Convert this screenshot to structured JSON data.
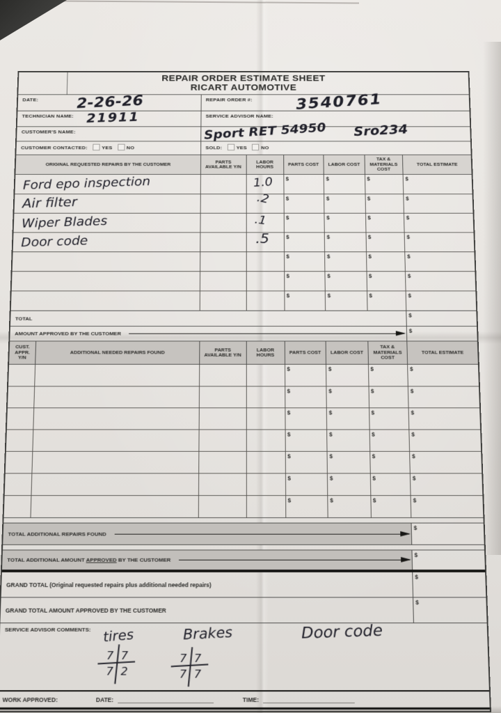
{
  "currency_symbol": "$",
  "header": {
    "title_line1": "REPAIR ORDER ESTIMATE SHEET",
    "title_line2": "RICART AUTOMOTIVE",
    "date_label": "DATE:",
    "date_value": "2-26-26",
    "repair_order_label": "REPAIR ORDER #:",
    "repair_order_value": "3540761",
    "technician_label": "TECHNICIAN NAME:",
    "technician_value": "21911",
    "service_advisor_label": "SERVICE ADVISOR NAME:",
    "customer_name_label": "CUSTOMER'S NAME:",
    "customer_note_left": "Sport RET 54950",
    "customer_note_right": "Sro234",
    "customer_contacted_label": "CUSTOMER CONTACTED:",
    "sold_label": "SOLD:",
    "yes_label": "YES",
    "no_label": "NO"
  },
  "original_table": {
    "columns": {
      "repairs": "ORIGINAL REQUESTED REPAIRS BY THE CUSTOMER",
      "parts_available": "PARTS AVAILABLE Y/N",
      "labor_hours": "LABOR HOURS",
      "parts_cost": "PARTS COST",
      "labor_cost": "LABOR COST",
      "tax_materials": "TAX & MATERIALS COST",
      "total_estimate": "TOTAL ESTIMATE"
    },
    "rows": [
      {
        "repair": "Ford epo inspection",
        "labor_hours": "1.0"
      },
      {
        "repair": "Air filter",
        "labor_hours": ".2"
      },
      {
        "repair": "Wiper Blades",
        "labor_hours": ".1"
      },
      {
        "repair": "Door code",
        "labor_hours": ".5"
      },
      {
        "repair": "",
        "labor_hours": ""
      },
      {
        "repair": "",
        "labor_hours": ""
      },
      {
        "repair": "",
        "labor_hours": ""
      }
    ],
    "total_label": "TOTAL",
    "amount_approved_label": "AMOUNT APPROVED BY THE CUSTOMER"
  },
  "additional_table": {
    "columns": {
      "cust_appr": "CUST. APPR. Y/N",
      "repairs_found": "ADDITIONAL NEEDED REPAIRS FOUND",
      "parts_available": "PARTS AVAILABLE Y/N",
      "labor_hours": "LABOR HOURS",
      "parts_cost": "PARTS COST",
      "labor_cost": "LABOR COST",
      "tax_materials": "TAX & MATERIALS COST",
      "total_estimate": "TOTAL ESTIMATE"
    },
    "empty_row_count": 7,
    "total_found_label": "TOTAL ADDITIONAL REPAIRS FOUND",
    "total_approved_prefix": "TOTAL ADDITIONAL AMOUNT ",
    "total_approved_underlined": "APPROVED",
    "total_approved_suffix": " BY THE CUSTOMER"
  },
  "grand_totals": {
    "grand_total_label": "GRAND TOTAL (Original requested repairs plus additional needed repairs)",
    "grand_total_approved_label": "GRAND TOTAL AMOUNT APPROVED BY THE CUSTOMER"
  },
  "comments": {
    "label": "SERVICE ADVISOR COMMENTS:",
    "note_tires": "tires",
    "note_brakes": "Brakes",
    "note_door_code": "Door code",
    "tires_tread": [
      "7",
      "7",
      "7",
      "2"
    ],
    "brakes_tread": [
      "7",
      "7",
      "7",
      "7"
    ]
  },
  "footer": {
    "work_approved_label": "WORK APPROVED:",
    "date_label": "DATE:",
    "time_label": "TIME:"
  }
}
